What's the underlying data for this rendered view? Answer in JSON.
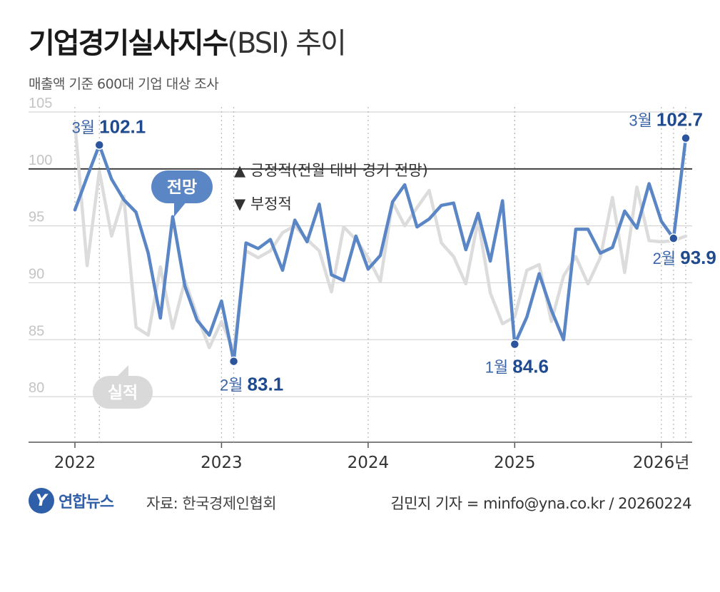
{
  "header": {
    "title": "기업경기실사지수",
    "title_paren": "(BSI) 추이",
    "subtitle": "매출액 기준 600대 기업 대상 조사"
  },
  "chart_data": {
    "type": "line",
    "y_ticks": [
      "105",
      "100",
      "95",
      "90",
      "85",
      "80"
    ],
    "ylim": [
      77.5,
      106
    ],
    "x_tick_labels": [
      "2022",
      "2023",
      "2024",
      "2025",
      "2026년"
    ],
    "x_tick_months": [
      0,
      12,
      24,
      36,
      48
    ],
    "reference_line": 100,
    "legend_up": "▲ 긍정적(전월 대비 경기 전망)",
    "legend_down": "▼ 부정적",
    "series": [
      {
        "name": "전망",
        "color": "#5b86c5",
        "values": [
          96.4,
          99.3,
          102.1,
          99.1,
          97.3,
          96.2,
          92.6,
          86.9,
          95.8,
          89.7,
          86.7,
          85.4,
          88.4,
          83.1,
          93.5,
          93.0,
          93.8,
          91.1,
          95.5,
          93.6,
          96.9,
          90.7,
          90.2,
          94.1,
          91.2,
          92.4,
          97.1,
          98.6,
          94.9,
          95.6,
          96.8,
          97.0,
          92.9,
          96.1,
          91.9,
          97.2,
          84.6,
          87.0,
          90.8,
          87.6,
          85.0,
          94.7,
          94.7,
          92.6,
          93.1,
          96.3,
          94.8,
          98.7,
          95.4,
          93.9,
          102.7
        ]
      },
      {
        "name": "실적",
        "color": "#dcdcdc",
        "values": [
          104.0,
          91.5,
          99.8,
          94.1,
          97.6,
          86.1,
          85.4,
          91.4,
          86.0,
          90.2,
          87.1,
          84.3,
          86.6,
          84.0,
          92.8,
          92.2,
          92.8,
          94.4,
          95.0,
          93.8,
          92.8,
          89.2,
          94.9,
          93.8,
          92.2,
          90.1,
          97.1,
          95.0,
          96.6,
          98.1,
          93.5,
          92.3,
          89.9,
          95.5,
          89.1,
          86.4,
          87.0,
          91.1,
          91.6,
          86.6,
          90.6,
          92.3,
          89.9,
          92.2,
          97.5,
          90.9,
          98.4,
          93.7,
          93.6,
          93.7,
          94.1
        ]
      }
    ],
    "annotations": [
      {
        "month": "3월",
        "value": "102.1",
        "index": 2
      },
      {
        "month": "2월",
        "value": "83.1",
        "index": 13
      },
      {
        "month": "1월",
        "value": "84.6",
        "index": 36
      },
      {
        "month": "2월",
        "value": "93.9",
        "index": 49
      },
      {
        "month": "3월",
        "value": "102.7",
        "index": 50
      }
    ]
  },
  "footer": {
    "logo_mark": "Y",
    "logo_text": "연합뉴스",
    "source": "자료: 한국경제인협회",
    "credit": "김민지 기자 = minfo@yna.co.kr / 20260224"
  }
}
